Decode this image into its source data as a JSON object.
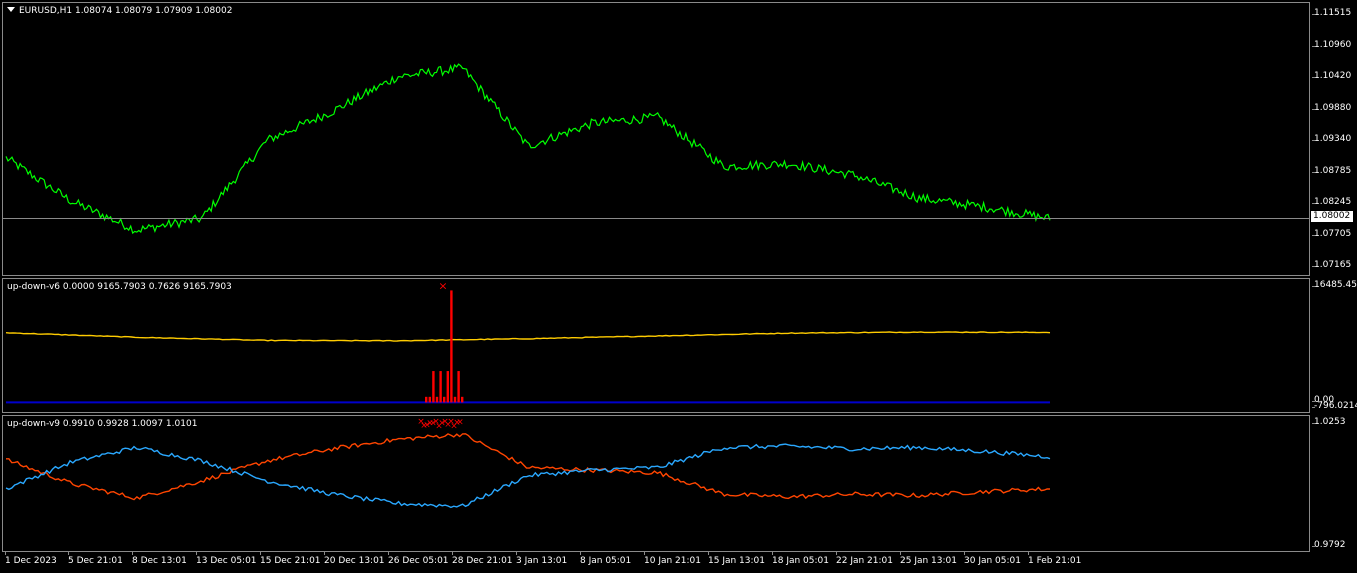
{
  "chart_data": [
    {
      "type": "line",
      "title": "EURUSD,H1  1.08074 1.08079 1.07909 1.08002",
      "symbol": "EURUSD",
      "timeframe": "H1",
      "ohlc": {
        "open": 1.08074,
        "high": 1.08079,
        "low": 1.07909,
        "close": 1.08002
      },
      "current_price_label": "1.08002",
      "y_ticks": [
        "1.11515",
        "1.10960",
        "1.10420",
        "1.09880",
        "1.09340",
        "1.08785",
        "1.08245",
        "1.07705",
        "1.07165"
      ],
      "ylim": [
        1.0706,
        1.1162
      ],
      "series": [
        {
          "color": "#00ff00",
          "x": [
            "1 Dec 2023",
            "5 Dec 21:01",
            "8 Dec 13:01",
            "13 Dec 05:01",
            "15 Dec 21:01",
            "20 Dec 13:01",
            "26 Dec 05:01",
            "28 Dec 21:01",
            "3 Jan 13:01",
            "8 Jan 05:01",
            "10 Jan 21:01",
            "15 Jan 13:01",
            "18 Jan 05:01",
            "22 Jan 21:01",
            "25 Jan 13:01",
            "30 Jan 05:01",
            "1 Feb 21:01"
          ],
          "values": [
            1.0905,
            1.083,
            1.078,
            1.08,
            1.0935,
            1.0985,
            1.1045,
            1.106,
            1.0925,
            1.0965,
            1.0975,
            1.089,
            1.0895,
            1.0875,
            1.0835,
            1.082,
            1.08
          ]
        }
      ]
    },
    {
      "type": "line",
      "title": "up-down-v6 0.0000 9165.7903 0.7626 9165.7903",
      "y_ticks": [
        "16485.450",
        "0.00",
        "-796.0214"
      ],
      "ylim": [
        -796.0214,
        16485.45
      ],
      "series": [
        {
          "color": "#ffcc00",
          "x": [
            "1 Dec 2023",
            "8 Dec 13:01",
            "15 Dec 21:01",
            "26 Dec 05:01",
            "3 Jan 13:01",
            "10 Jan 21:01",
            "18 Jan 05:01",
            "25 Jan 13:01",
            "1 Feb 21:01"
          ],
          "values": [
            9950,
            9300,
            8850,
            8800,
            9100,
            9500,
            9900,
            10050,
            10000
          ]
        },
        {
          "color": "#0000cc",
          "x": [
            "1 Dec 2023",
            "1 Feb 21:01"
          ],
          "values": [
            0,
            0
          ]
        },
        {
          "color": "#ff0000",
          "x": [
            "28 Dec 21:01"
          ],
          "values": [
            16000
          ],
          "style": "histogram-spikes"
        }
      ]
    },
    {
      "type": "line",
      "title": "up-down-v9 0.9910 0.9928 1.0097 1.0101",
      "y_ticks": [
        "1.0253",
        "0.9792"
      ],
      "ylim": [
        0.9792,
        1.0253
      ],
      "series": [
        {
          "color": "#ff4500",
          "x": [
            "1 Dec 2023",
            "5 Dec 21:01",
            "8 Dec 13:01",
            "13 Dec 05:01",
            "15 Dec 21:01",
            "20 Dec 13:01",
            "26 Dec 05:01",
            "28 Dec 21:01",
            "3 Jan 13:01",
            "8 Jan 05:01",
            "10 Jan 21:01",
            "15 Jan 13:01",
            "18 Jan 05:01",
            "22 Jan 21:01",
            "25 Jan 13:01",
            "30 Jan 05:01",
            "1 Feb 21:01"
          ],
          "values": [
            1.012,
            1.003,
            0.9975,
            1.004,
            1.0115,
            1.016,
            1.0195,
            1.0215,
            1.009,
            1.008,
            1.007,
            0.999,
            0.998,
            0.999,
            0.9985,
            1.0,
            1.001
          ]
        },
        {
          "color": "#2aa8ff",
          "x": [
            "1 Dec 2023",
            "5 Dec 21:01",
            "8 Dec 13:01",
            "13 Dec 05:01",
            "15 Dec 21:01",
            "20 Dec 13:01",
            "26 Dec 05:01",
            "28 Dec 21:01",
            "3 Jan 13:01",
            "8 Jan 05:01",
            "10 Jan 21:01",
            "15 Jan 13:01",
            "18 Jan 05:01",
            "22 Jan 21:01",
            "25 Jan 13:01",
            "30 Jan 05:01",
            "1 Feb 21:01"
          ],
          "values": [
            1.001,
            1.011,
            1.0165,
            1.0115,
            1.004,
            0.999,
            0.9955,
            0.9945,
            1.006,
            1.008,
            1.009,
            1.0165,
            1.017,
            1.016,
            1.0165,
            1.015,
            1.013
          ]
        },
        {
          "color": "#ff0000",
          "x": [
            "28 Dec 21:01"
          ],
          "values": [
            1.0245
          ],
          "style": "marker-cluster"
        }
      ]
    }
  ],
  "time_axis": [
    "1 Dec 2023",
    "5 Dec 21:01",
    "8 Dec 13:01",
    "13 Dec 05:01",
    "15 Dec 21:01",
    "20 Dec 13:01",
    "26 Dec 05:01",
    "28 Dec 21:01",
    "3 Jan 13:01",
    "8 Jan 05:01",
    "10 Jan 21:01",
    "15 Jan 13:01",
    "18 Jan 05:01",
    "22 Jan 21:01",
    "25 Jan 13:01",
    "30 Jan 05:01",
    "1 Feb 21:01"
  ],
  "colors": {
    "price": "#00ff00",
    "v6_line": "#ffcc00",
    "v6_base": "#0000cc",
    "signal": "#ff0000",
    "v9_a": "#ff4500",
    "v9_b": "#2aa8ff",
    "grid_line": "#8a8a8a"
  }
}
